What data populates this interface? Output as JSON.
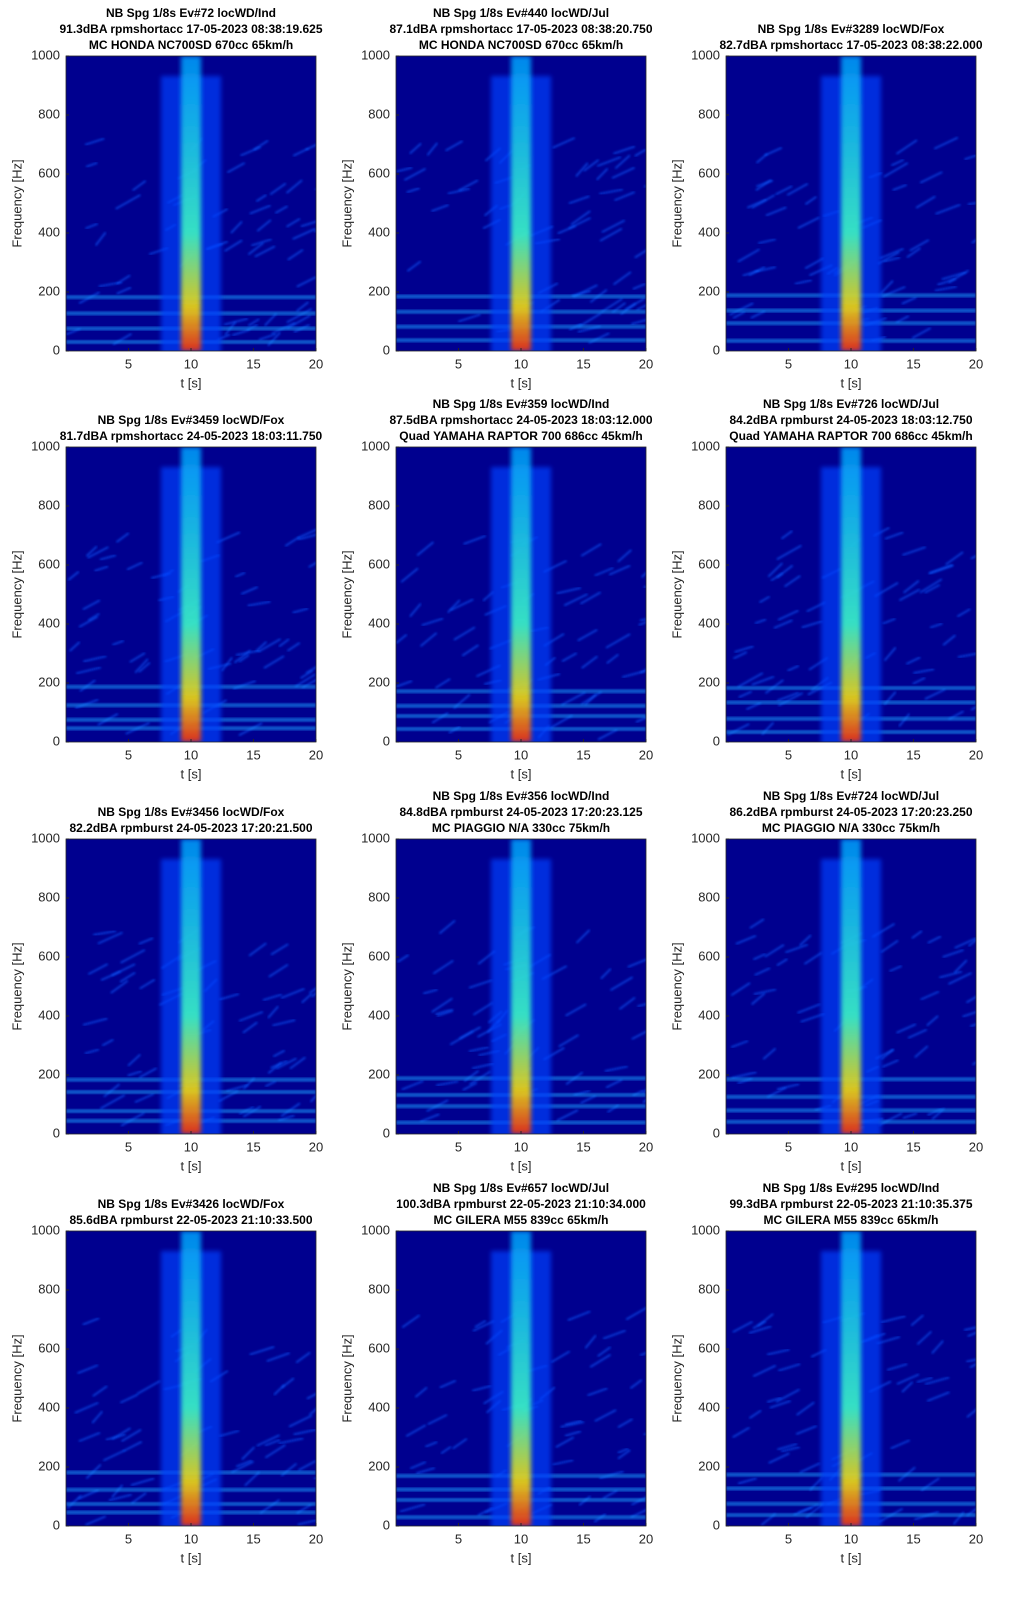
{
  "chart_data": [
    {
      "type": "spectrogram",
      "title": [
        "NB Spg 1/8s Ev#72 locWD/Ind",
        "91.3dBA rpmshortacc 17-05-2023 08:38:19.625",
        "MC HONDA NC700SD 670cc 65km/h"
      ],
      "xlabel": "t [s]",
      "ylabel": "Frequency [Hz]",
      "xlim": [
        0,
        20
      ],
      "ylim": [
        0,
        1000
      ],
      "xticks": [
        5,
        10,
        15,
        20
      ],
      "yticks": [
        0,
        200,
        400,
        600,
        800,
        1000
      ]
    },
    {
      "type": "spectrogram",
      "title": [
        "NB Spg 1/8s Ev#440 locWD/Jul",
        "87.1dBA rpmshortacc 17-05-2023 08:38:20.750",
        "MC HONDA NC700SD 670cc 65km/h"
      ],
      "xlabel": "t [s]",
      "ylabel": "Frequency [Hz]",
      "xlim": [
        0,
        20
      ],
      "ylim": [
        0,
        1000
      ],
      "xticks": [
        5,
        10,
        15,
        20
      ],
      "yticks": [
        0,
        200,
        400,
        600,
        800,
        1000
      ]
    },
    {
      "type": "spectrogram",
      "title": [
        "NB Spg 1/8s Ev#3289 locWD/Fox",
        "82.7dBA rpmshortacc 17-05-2023 08:38:22.000"
      ],
      "xlabel": "t [s]",
      "ylabel": "Frequency [Hz]",
      "xlim": [
        0,
        20
      ],
      "ylim": [
        0,
        1000
      ],
      "xticks": [
        5,
        10,
        15,
        20
      ],
      "yticks": [
        0,
        200,
        400,
        600,
        800,
        1000
      ]
    },
    {
      "type": "spectrogram",
      "title": [
        "NB Spg 1/8s Ev#3459 locWD/Fox",
        "81.7dBA rpmshortacc 24-05-2023 18:03:11.750"
      ],
      "xlabel": "t [s]",
      "ylabel": "Frequency [Hz]",
      "xlim": [
        0,
        20
      ],
      "ylim": [
        0,
        1000
      ],
      "xticks": [
        5,
        10,
        15,
        20
      ],
      "yticks": [
        0,
        200,
        400,
        600,
        800,
        1000
      ]
    },
    {
      "type": "spectrogram",
      "title": [
        "NB Spg 1/8s Ev#359 locWD/Ind",
        "87.5dBA rpmshortacc 24-05-2023 18:03:12.000",
        "Quad YAMAHA RAPTOR 700 686cc 45km/h"
      ],
      "xlabel": "t [s]",
      "ylabel": "Frequency [Hz]",
      "xlim": [
        0,
        20
      ],
      "ylim": [
        0,
        1000
      ],
      "xticks": [
        5,
        10,
        15,
        20
      ],
      "yticks": [
        0,
        200,
        400,
        600,
        800,
        1000
      ]
    },
    {
      "type": "spectrogram",
      "title": [
        "NB Spg 1/8s Ev#726 locWD/Jul",
        "84.2dBA rpmburst 24-05-2023 18:03:12.750",
        "Quad YAMAHA RAPTOR 700 686cc 45km/h"
      ],
      "xlabel": "t [s]",
      "ylabel": "Frequency [Hz]",
      "xlim": [
        0,
        20
      ],
      "ylim": [
        0,
        1000
      ],
      "xticks": [
        5,
        10,
        15,
        20
      ],
      "yticks": [
        0,
        200,
        400,
        600,
        800,
        1000
      ]
    },
    {
      "type": "spectrogram",
      "title": [
        "NB Spg 1/8s Ev#3456 locWD/Fox",
        "82.2dBA rpmburst 24-05-2023 17:20:21.500"
      ],
      "xlabel": "t [s]",
      "ylabel": "Frequency [Hz]",
      "xlim": [
        0,
        20
      ],
      "ylim": [
        0,
        1000
      ],
      "xticks": [
        5,
        10,
        15,
        20
      ],
      "yticks": [
        0,
        200,
        400,
        600,
        800,
        1000
      ]
    },
    {
      "type": "spectrogram",
      "title": [
        "NB Spg 1/8s Ev#356 locWD/Ind",
        "84.8dBA rpmburst 24-05-2023 17:20:23.125",
        "MC PIAGGIO N/A 330cc 75km/h"
      ],
      "xlabel": "t [s]",
      "ylabel": "Frequency [Hz]",
      "xlim": [
        0,
        20
      ],
      "ylim": [
        0,
        1000
      ],
      "xticks": [
        5,
        10,
        15,
        20
      ],
      "yticks": [
        0,
        200,
        400,
        600,
        800,
        1000
      ]
    },
    {
      "type": "spectrogram",
      "title": [
        "NB Spg 1/8s Ev#724 locWD/Jul",
        "86.2dBA rpmburst 24-05-2023 17:20:23.250",
        "MC PIAGGIO N/A 330cc 75km/h"
      ],
      "xlabel": "t [s]",
      "ylabel": "Frequency [Hz]",
      "xlim": [
        0,
        20
      ],
      "ylim": [
        0,
        1000
      ],
      "xticks": [
        5,
        10,
        15,
        20
      ],
      "yticks": [
        0,
        200,
        400,
        600,
        800,
        1000
      ]
    },
    {
      "type": "spectrogram",
      "title": [
        "NB Spg 1/8s Ev#3426 locWD/Fox",
        "85.6dBA rpmburst 22-05-2023 21:10:33.500"
      ],
      "xlabel": "t [s]",
      "ylabel": "Frequency [Hz]",
      "xlim": [
        0,
        20
      ],
      "ylim": [
        0,
        1000
      ],
      "xticks": [
        5,
        10,
        15,
        20
      ],
      "yticks": [
        0,
        200,
        400,
        600,
        800,
        1000
      ]
    },
    {
      "type": "spectrogram",
      "title": [
        "NB Spg 1/8s Ev#657 locWD/Jul",
        "100.3dBA rpmburst 22-05-2023 21:10:34.000",
        "MC GILERA M55 839cc 65km/h"
      ],
      "xlabel": "t [s]",
      "ylabel": "Frequency [Hz]",
      "xlim": [
        0,
        20
      ],
      "ylim": [
        0,
        1000
      ],
      "xticks": [
        5,
        10,
        15,
        20
      ],
      "yticks": [
        0,
        200,
        400,
        600,
        800,
        1000
      ]
    },
    {
      "type": "spectrogram",
      "title": [
        "NB Spg 1/8s Ev#295 locWD/Ind",
        "99.3dBA rpmburst 22-05-2023 21:10:35.375",
        "MC GILERA M55 839cc 65km/h"
      ],
      "xlabel": "t [s]",
      "ylabel": "Frequency [Hz]",
      "xlim": [
        0,
        20
      ],
      "ylim": [
        0,
        1000
      ],
      "xticks": [
        5,
        10,
        15,
        20
      ],
      "yticks": [
        0,
        200,
        400,
        600,
        800,
        1000
      ]
    }
  ]
}
